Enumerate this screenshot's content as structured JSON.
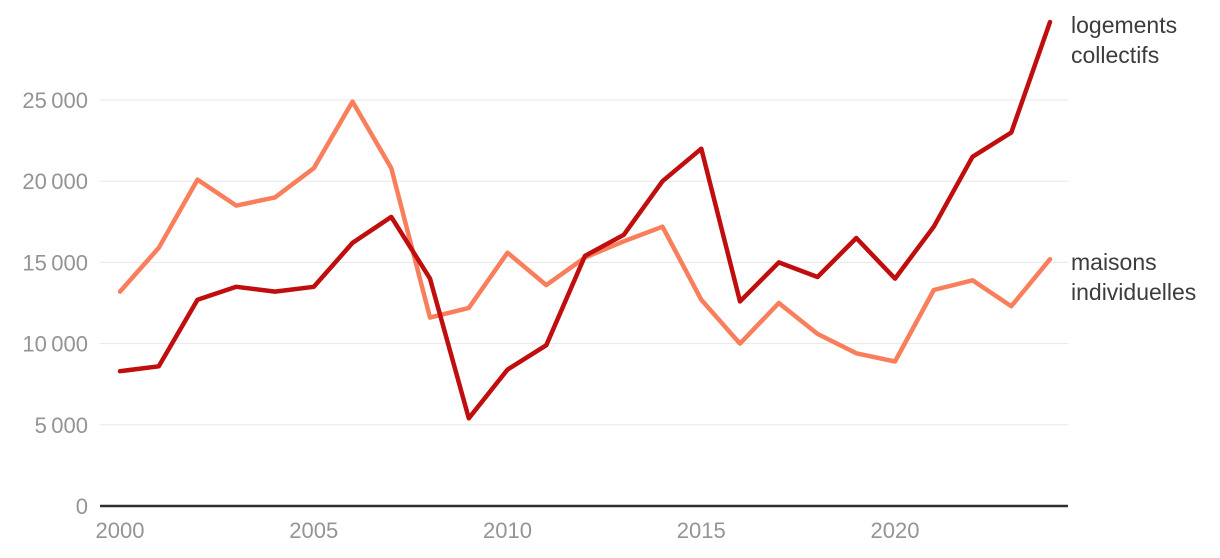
{
  "chart_data": {
    "type": "line",
    "title": "",
    "xlabel": "",
    "ylabel": "",
    "grid": "horizontal",
    "legend_position": "right-of-line-ends",
    "xlim": [
      2000,
      2024
    ],
    "ylim": [
      0,
      31000
    ],
    "x": [
      2000,
      2001,
      2002,
      2003,
      2004,
      2005,
      2006,
      2007,
      2008,
      2009,
      2010,
      2011,
      2012,
      2013,
      2014,
      2015,
      2016,
      2017,
      2018,
      2019,
      2020,
      2021,
      2022,
      2023,
      2024
    ],
    "series": [
      {
        "name": "maisons individuelles",
        "color": "#f87e5c",
        "values": [
          13200,
          15900,
          20100,
          18500,
          19000,
          20800,
          24900,
          20800,
          11600,
          12200,
          15600,
          13600,
          15300,
          16300,
          17200,
          12700,
          10000,
          12500,
          10600,
          9400,
          8900,
          13300,
          13900,
          12300,
          15200
        ]
      },
      {
        "name": "logements collectifs",
        "color": "#c00d0d",
        "values": [
          8300,
          8600,
          12700,
          13500,
          13200,
          13500,
          16200,
          17800,
          14000,
          5400,
          8400,
          9900,
          15400,
          16700,
          20000,
          22000,
          12600,
          15000,
          14100,
          16500,
          14000,
          17200,
          21500,
          23000,
          29800
        ]
      }
    ],
    "x_ticks": [
      {
        "value": 2000,
        "label": "2000"
      },
      {
        "value": 2005,
        "label": "2005"
      },
      {
        "value": 2010,
        "label": "2010"
      },
      {
        "value": 2015,
        "label": "2015"
      },
      {
        "value": 2020,
        "label": "2020"
      }
    ],
    "y_ticks": [
      {
        "value": 0,
        "label": "0"
      },
      {
        "value": 5000,
        "label": "5 000"
      },
      {
        "value": 10000,
        "label": "10 000"
      },
      {
        "value": 15000,
        "label": "15 000"
      },
      {
        "value": 20000,
        "label": "20 000"
      },
      {
        "value": 25000,
        "label": "25 000"
      }
    ]
  },
  "legend": {
    "collectifs_line1": "logements",
    "collectifs_line2": "collectifs",
    "individuelles_line1": "maisons",
    "individuelles_line2": "individuelles"
  },
  "colors": {
    "collectifs": "#c00d0d",
    "individuelles": "#f87e5c",
    "grid": "#e7e7e7",
    "axis": "#2f2f2f",
    "tick_text": "#949494",
    "legend_text": "#3c3c3c",
    "background": "#ffffff"
  }
}
